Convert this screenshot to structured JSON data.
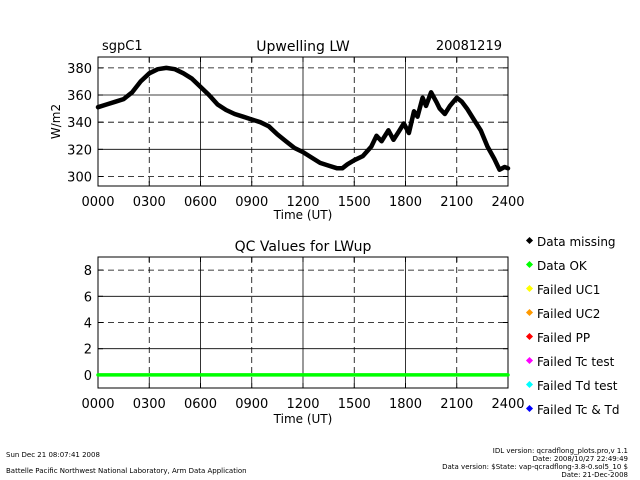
{
  "header": {
    "site": "sgpC1",
    "date": "20081219"
  },
  "chart_data": [
    {
      "type": "line",
      "title": "Upwelling LW",
      "xlabel": "Time (UT)",
      "ylabel": "W/m2",
      "xlim": [
        0,
        24
      ],
      "ylim": [
        293,
        388
      ],
      "x_ticks": [
        0,
        3,
        6,
        9,
        12,
        15,
        18,
        21,
        24
      ],
      "x_tick_labels": [
        "0000",
        "0300",
        "0600",
        "0900",
        "1200",
        "1500",
        "1800",
        "2100",
        "2400"
      ],
      "y_ticks": [
        300,
        320,
        340,
        360,
        380
      ],
      "y_tick_labels": [
        "300",
        "320",
        "340",
        "360",
        "380"
      ],
      "grid": true,
      "series": [
        {
          "color": "#000000",
          "points": [
            [
              0,
              351
            ],
            [
              0.5,
              353
            ],
            [
              1,
              355
            ],
            [
              1.5,
              357
            ],
            [
              2,
              362
            ],
            [
              2.5,
              370
            ],
            [
              3,
              376
            ],
            [
              3.5,
              379
            ],
            [
              4,
              380
            ],
            [
              4.5,
              379
            ],
            [
              5,
              376
            ],
            [
              5.5,
              372
            ],
            [
              6,
              366
            ],
            [
              6.5,
              360
            ],
            [
              7,
              353
            ],
            [
              7.5,
              349
            ],
            [
              8,
              346
            ],
            [
              8.5,
              344
            ],
            [
              9,
              342
            ],
            [
              9.5,
              340
            ],
            [
              10,
              337
            ],
            [
              10.5,
              331
            ],
            [
              11,
              326
            ],
            [
              11.5,
              321
            ],
            [
              12,
              318
            ],
            [
              12.5,
              314
            ],
            [
              13,
              310
            ],
            [
              13.5,
              308
            ],
            [
              14,
              306
            ],
            [
              14.3,
              306
            ],
            [
              14.6,
              309
            ],
            [
              15,
              312
            ],
            [
              15.5,
              315
            ],
            [
              16,
              322
            ],
            [
              16.3,
              330
            ],
            [
              16.6,
              326
            ],
            [
              17,
              334
            ],
            [
              17.3,
              327
            ],
            [
              17.6,
              333
            ],
            [
              17.9,
              339
            ],
            [
              18.2,
              332
            ],
            [
              18.5,
              348
            ],
            [
              18.7,
              344
            ],
            [
              19,
              358
            ],
            [
              19.2,
              352
            ],
            [
              19.5,
              362
            ],
            [
              19.8,
              355
            ],
            [
              20,
              350
            ],
            [
              20.3,
              346
            ],
            [
              20.6,
              352
            ],
            [
              21,
              358
            ],
            [
              21.3,
              355
            ],
            [
              21.6,
              350
            ],
            [
              22,
              342
            ],
            [
              22.4,
              334
            ],
            [
              22.8,
              322
            ],
            [
              23.2,
              313
            ],
            [
              23.5,
              305
            ],
            [
              23.8,
              307
            ],
            [
              24,
              306
            ]
          ]
        }
      ]
    },
    {
      "type": "scatter",
      "title": "QC Values for LWup",
      "xlabel": "Time (UT)",
      "xlim": [
        0,
        24
      ],
      "ylim": [
        -1,
        9
      ],
      "x_ticks": [
        0,
        3,
        6,
        9,
        12,
        15,
        18,
        21,
        24
      ],
      "x_tick_labels": [
        "0000",
        "0300",
        "0600",
        "0900",
        "1200",
        "1500",
        "1800",
        "2100",
        "2400"
      ],
      "y_ticks": [
        0,
        2,
        4,
        6,
        8
      ],
      "y_tick_labels": [
        "0",
        "2",
        "4",
        "6",
        "8"
      ],
      "grid": true,
      "series": [
        {
          "color": "#00ff00",
          "points": [
            [
              0,
              0
            ],
            [
              24,
              0
            ]
          ]
        }
      ],
      "legend_position": "right",
      "legend": [
        {
          "name": "Data missing",
          "color": "#000000"
        },
        {
          "name": "Data OK",
          "color": "#00ff00"
        },
        {
          "name": "Failed UC1",
          "color": "#ffff00"
        },
        {
          "name": "Failed UC2",
          "color": "#ff9900"
        },
        {
          "name": "Failed PP",
          "color": "#ff0000"
        },
        {
          "name": "Failed Tc test",
          "color": "#ff00ff"
        },
        {
          "name": "Failed Td test",
          "color": "#00ffff"
        },
        {
          "name": "Failed Tc & Td",
          "color": "#0000ff"
        }
      ]
    }
  ],
  "footer": {
    "timestamp": "Sun Dec 21 08:07:41 2008",
    "lab": "Battelle Pacific Northwest National Laboratory, Arm Data Application",
    "idl_version": "IDL version: qcradflong_plots.pro,v 1.1",
    "idl_date": "Date: 2008/10/27 22:49:49",
    "data_version": "Data version: $State: vap-qcradflong-3.8-0.sol5_10 $",
    "data_date": "Date: 21-Dec-2008"
  }
}
